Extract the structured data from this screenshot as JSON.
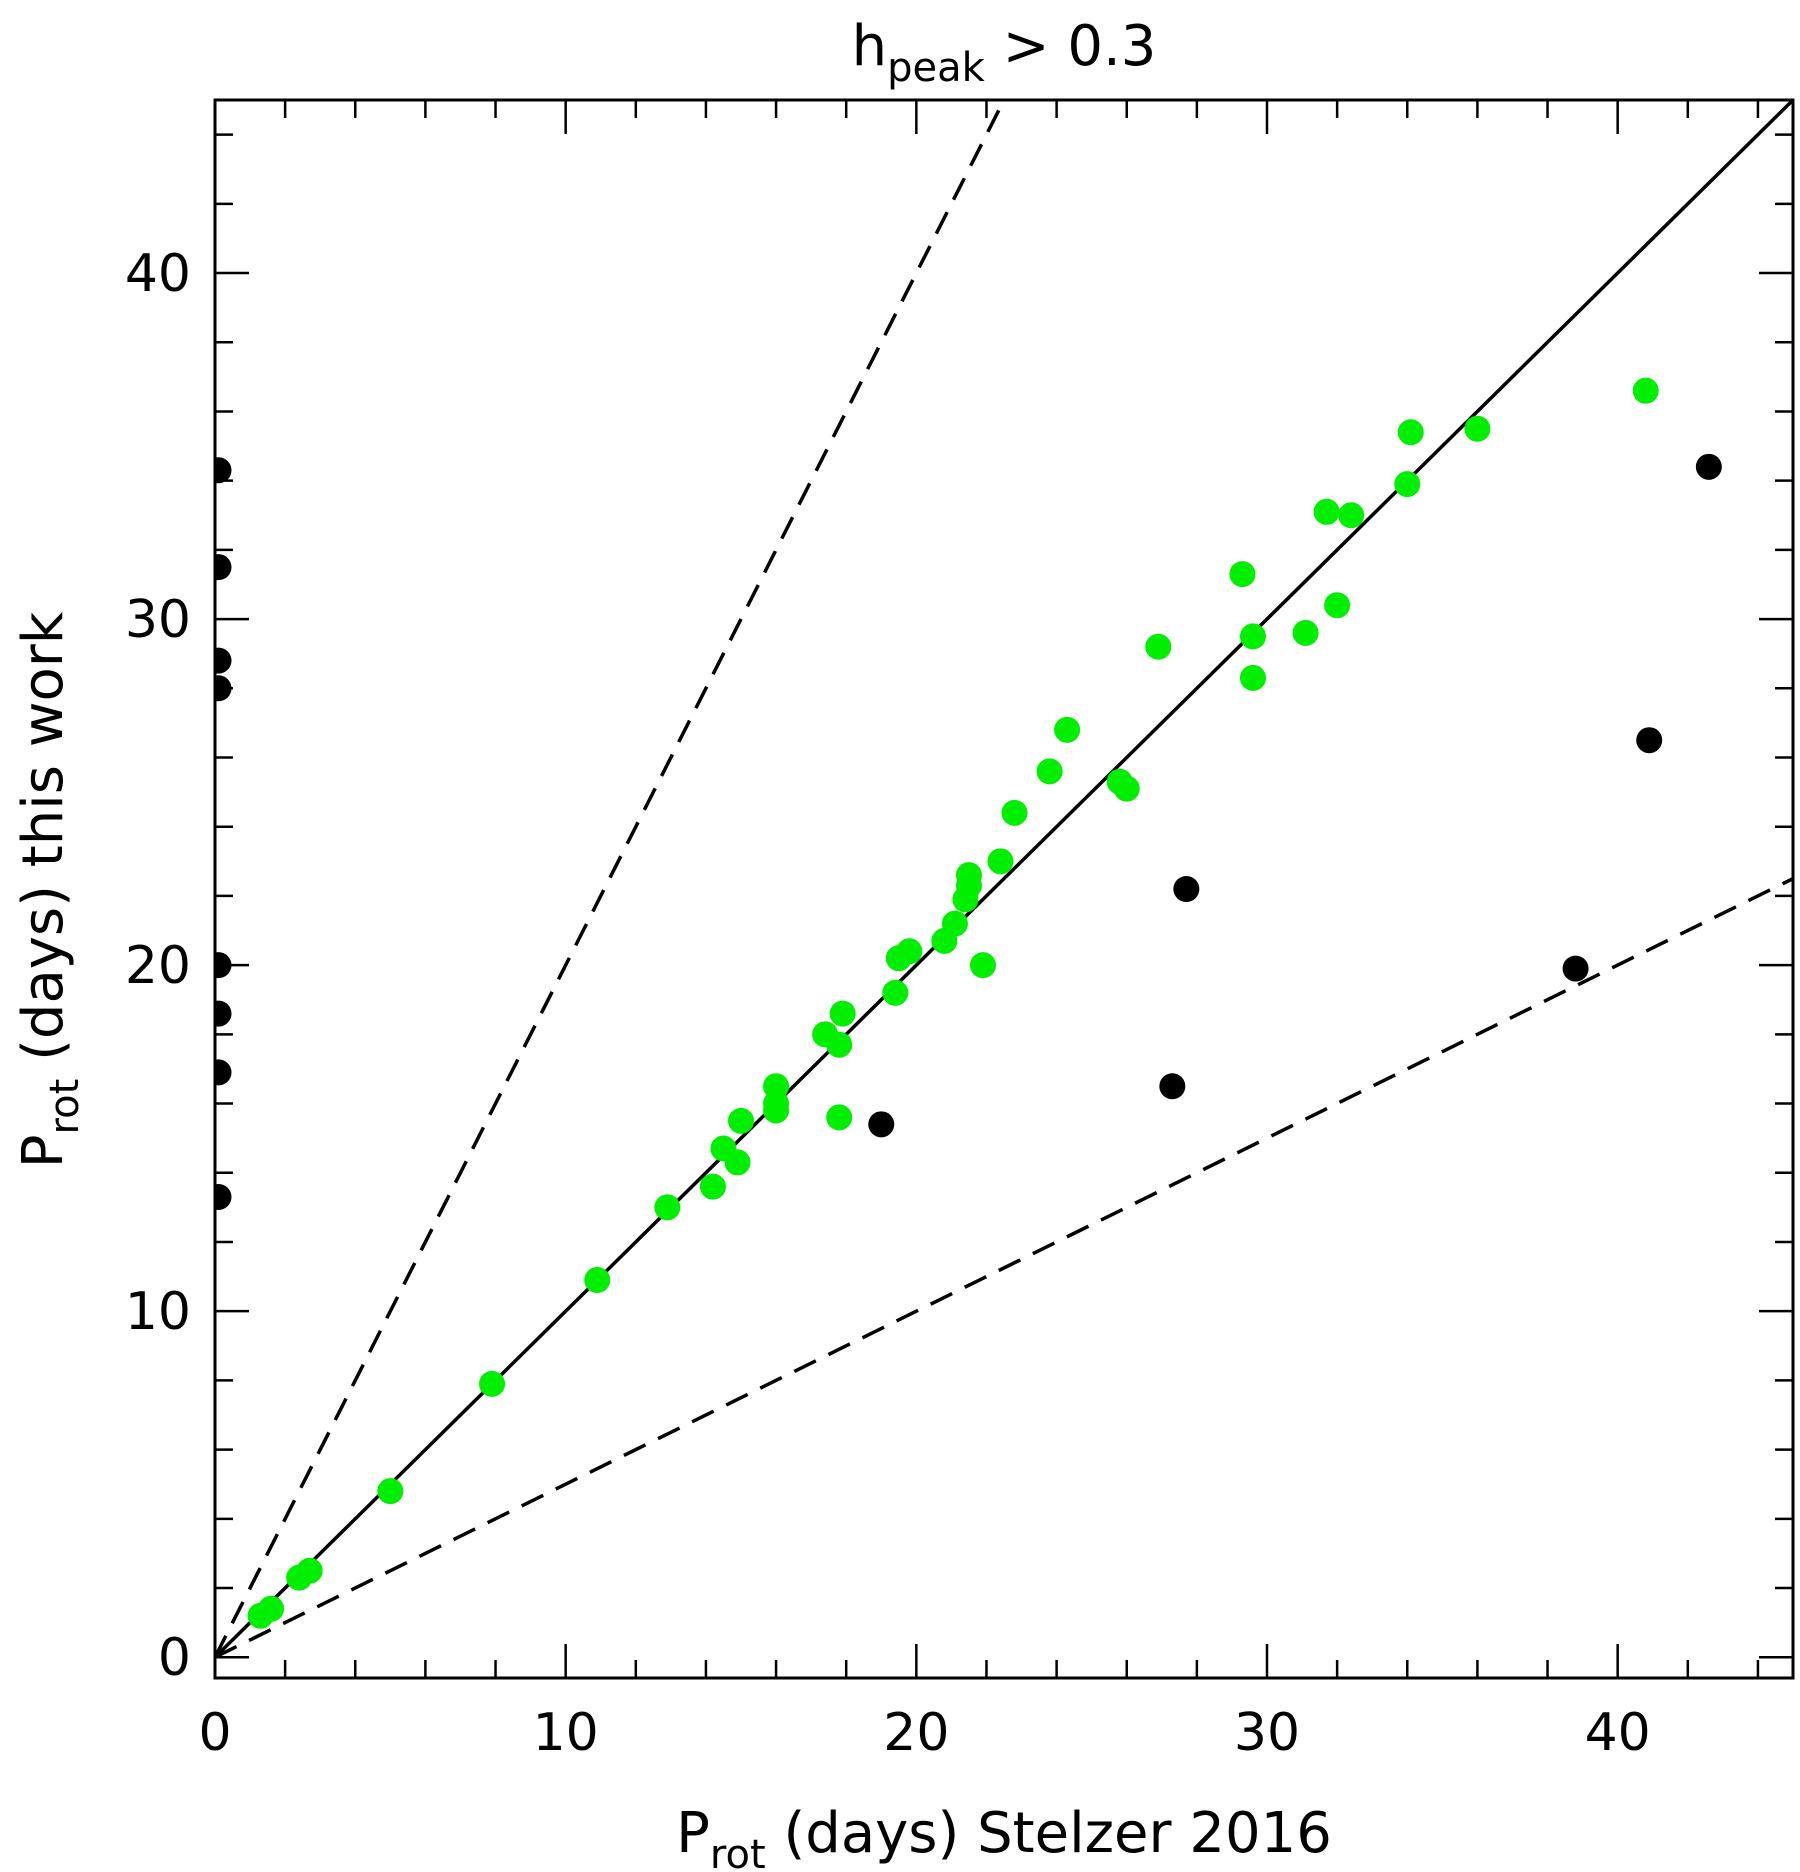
{
  "chart_data": {
    "type": "scatter",
    "title_main": "h",
    "title_sub": "peak",
    "title_rest": " > 0.3",
    "xlabel_main": "P",
    "xlabel_sub": "rot",
    "xlabel_rest": " (days) Stelzer 2016",
    "ylabel_main": "P",
    "ylabel_sub": "rot",
    "ylabel_rest": " (days) this work",
    "xlim": [
      0,
      45
    ],
    "ylim": [
      -0.6,
      45
    ],
    "xticks": [
      0,
      10,
      20,
      30,
      40
    ],
    "yticks": [
      0,
      10,
      20,
      30,
      40
    ],
    "x_minor_step": 2,
    "y_minor_step": 2,
    "reference_lines": [
      {
        "name": "one-to-one",
        "slope": 1,
        "style": "solid"
      },
      {
        "name": "double-period",
        "slope": 2,
        "style": "dashed"
      },
      {
        "name": "half-period",
        "slope": 0.5,
        "style": "dashed"
      }
    ],
    "series": [
      {
        "name": "green",
        "color": "#00ee00",
        "points": [
          [
            1.3,
            1.2
          ],
          [
            1.6,
            1.4
          ],
          [
            2.4,
            2.3
          ],
          [
            2.7,
            2.5
          ],
          [
            5.0,
            4.8
          ],
          [
            7.9,
            7.9
          ],
          [
            10.9,
            10.9
          ],
          [
            12.9,
            13.0
          ],
          [
            14.2,
            13.6
          ],
          [
            14.5,
            14.7
          ],
          [
            14.9,
            14.3
          ],
          [
            15.0,
            15.5
          ],
          [
            16.0,
            15.8
          ],
          [
            16.0,
            16.5
          ],
          [
            16.0,
            16.0
          ],
          [
            17.4,
            18.0
          ],
          [
            17.8,
            17.7
          ],
          [
            17.9,
            18.6
          ],
          [
            17.8,
            15.6
          ],
          [
            19.4,
            19.2
          ],
          [
            19.5,
            20.2
          ],
          [
            19.8,
            20.4
          ],
          [
            20.8,
            20.7
          ],
          [
            21.1,
            21.2
          ],
          [
            21.4,
            21.9
          ],
          [
            21.5,
            22.3
          ],
          [
            21.5,
            22.6
          ],
          [
            21.9,
            20.0
          ],
          [
            22.4,
            23.0
          ],
          [
            22.8,
            24.4
          ],
          [
            23.8,
            25.6
          ],
          [
            24.3,
            26.8
          ],
          [
            25.8,
            25.3
          ],
          [
            26.0,
            25.1
          ],
          [
            26.9,
            29.2
          ],
          [
            29.3,
            31.3
          ],
          [
            29.6,
            29.5
          ],
          [
            29.6,
            28.3
          ],
          [
            31.1,
            29.6
          ],
          [
            31.7,
            33.1
          ],
          [
            32.0,
            30.4
          ],
          [
            32.4,
            33.0
          ],
          [
            34.0,
            33.9
          ],
          [
            34.1,
            35.4
          ],
          [
            36.0,
            35.5
          ],
          [
            40.8,
            36.6
          ]
        ]
      },
      {
        "name": "black",
        "color": "#000000",
        "points": [
          [
            0.1,
            34.3
          ],
          [
            0.1,
            31.5
          ],
          [
            0.1,
            28.8
          ],
          [
            0.1,
            28.0
          ],
          [
            0.1,
            20.0
          ],
          [
            0.1,
            18.6
          ],
          [
            0.1,
            16.9
          ],
          [
            0.1,
            13.3
          ],
          [
            19.0,
            15.4
          ],
          [
            27.3,
            16.5
          ],
          [
            27.7,
            22.2
          ],
          [
            38.8,
            19.9
          ],
          [
            40.9,
            26.5
          ],
          [
            42.6,
            34.4
          ]
        ]
      }
    ]
  }
}
